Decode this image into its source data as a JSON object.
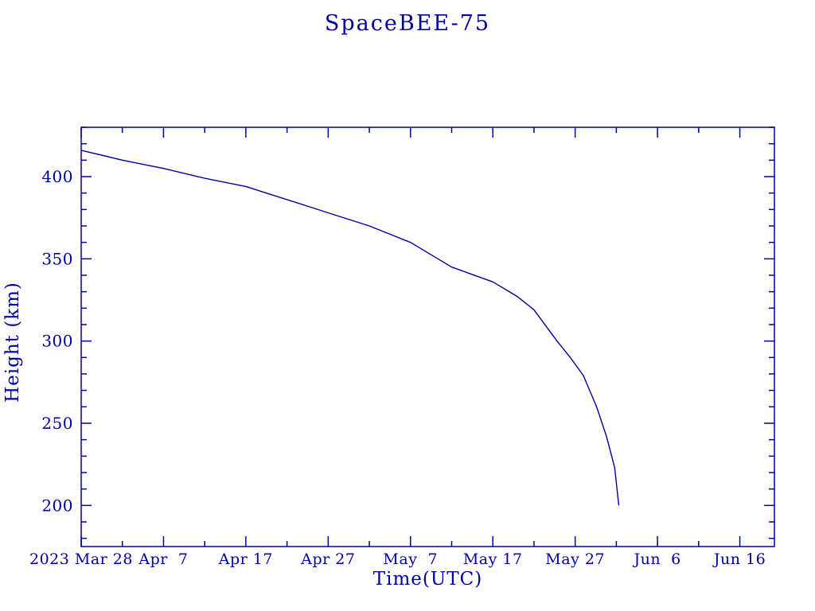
{
  "page": {
    "background_color": "#FFFFFF",
    "ink_color": "#0000A0"
  },
  "chart_data": {
    "type": "line",
    "title": "SpaceBEE-75",
    "xlabel": "Time(UTC)",
    "ylabel": "Height (km)",
    "line_color": "#0000A0",
    "axis_color": "#0000A0",
    "grid": false,
    "legend": "none",
    "x_axis": {
      "unit": "days since 2023 Mar 28 00:00 UTC",
      "range_days": [
        0,
        84.2
      ],
      "major_ticks": [
        {
          "label": "2023 Mar 28",
          "day": 0
        },
        {
          "label": "Apr  7",
          "day": 10
        },
        {
          "label": "Apr 17",
          "day": 20
        },
        {
          "label": "Apr 27",
          "day": 30
        },
        {
          "label": "May  7",
          "day": 40
        },
        {
          "label": "May 17",
          "day": 50
        },
        {
          "label": "May 27",
          "day": 60
        },
        {
          "label": "Jun  6",
          "day": 70
        },
        {
          "label": "Jun 16",
          "day": 80
        }
      ],
      "minor_tick_days": [
        5,
        15,
        25,
        35,
        45,
        55,
        65,
        75
      ]
    },
    "y_axis": {
      "unit": "km",
      "range_km": [
        175,
        430
      ],
      "major_ticks_km": [
        200,
        250,
        300,
        350,
        400
      ],
      "minor_step_km": 10
    },
    "series": [
      {
        "name": "SpaceBEE-75 orbital height",
        "points": [
          {
            "date": "2023 Mar 28",
            "day": 0,
            "height_km": 416
          },
          {
            "date": "2023 Apr 2",
            "day": 5,
            "height_km": 410
          },
          {
            "date": "2023 Apr 7",
            "day": 10,
            "height_km": 405
          },
          {
            "date": "2023 Apr 12",
            "day": 15,
            "height_km": 399
          },
          {
            "date": "2023 Apr 17",
            "day": 20,
            "height_km": 394
          },
          {
            "date": "2023 Apr 22",
            "day": 25,
            "height_km": 386
          },
          {
            "date": "2023 Apr 27",
            "day": 30,
            "height_km": 378
          },
          {
            "date": "2023 May 2",
            "day": 35,
            "height_km": 370
          },
          {
            "date": "2023 May 7",
            "day": 40,
            "height_km": 360
          },
          {
            "date": "2023 May 12",
            "day": 45,
            "height_km": 345
          },
          {
            "date": "2023 May 17",
            "day": 50,
            "height_km": 336
          },
          {
            "date": "2023 May 20",
            "day": 53,
            "height_km": 327
          },
          {
            "date": "2023 May 22",
            "day": 55,
            "height_km": 319
          },
          {
            "date": "2023 May 25",
            "day": 57.8,
            "height_km": 300
          },
          {
            "date": "2023 May 26",
            "day": 59.4,
            "height_km": 290
          },
          {
            "date": "2023 May 28",
            "day": 61,
            "height_km": 279
          },
          {
            "date": "2023 May 29",
            "day": 62.6,
            "height_km": 260
          },
          {
            "date": "2023 May 30",
            "day": 63.8,
            "height_km": 242
          },
          {
            "date": "2023 May 31",
            "day": 64.8,
            "height_km": 223
          },
          {
            "date": "2023 Jun 1",
            "day": 65.3,
            "height_km": 200
          }
        ]
      }
    ]
  }
}
